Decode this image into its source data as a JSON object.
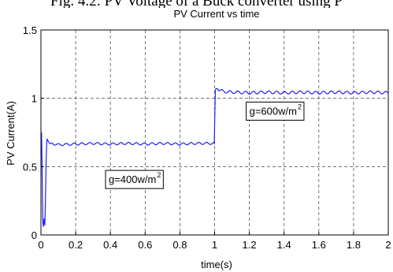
{
  "caption": "Fig. 4.2: PV Voltage of a Buck converter using P",
  "chart_data": {
    "type": "line",
    "title": "PV Current vs time",
    "xlabel": "time(s)",
    "ylabel": "PV Current(A)",
    "xlim": [
      0,
      2
    ],
    "ylim": [
      0,
      1.5
    ],
    "grid": true,
    "x_ticks": [
      "0",
      "0.2",
      "0.4",
      "0.6",
      "0.8",
      "1",
      "1.2",
      "1.4",
      "1.6",
      "1.8",
      "2"
    ],
    "y_ticks": [
      "0",
      "0.5",
      "1",
      "1.5"
    ],
    "series": [
      {
        "color": "#1f1fff",
        "x": [
          0,
          0.003,
          0.006,
          0.008,
          0.011,
          0.014,
          0.018,
          0.022,
          0.026,
          0.03,
          0.033,
          0.036,
          0.04,
          0.045,
          0.05,
          0.06,
          0.1,
          0.2,
          0.3,
          0.4,
          0.5,
          0.6,
          0.7,
          0.8,
          0.9,
          0.998,
          1.0,
          1.004,
          1.008,
          1.015,
          1.03,
          1.05,
          1.1,
          1.2,
          1.3,
          1.4,
          1.5,
          1.6,
          1.7,
          1.8,
          1.9,
          2.0
        ],
        "y": [
          0.6,
          0.75,
          0.55,
          0.3,
          0.1,
          0.06,
          0.12,
          0.07,
          0.25,
          0.55,
          0.68,
          0.7,
          0.69,
          0.68,
          0.67,
          0.67,
          0.66,
          0.665,
          0.67,
          0.665,
          0.67,
          0.665,
          0.67,
          0.665,
          0.67,
          0.67,
          0.8,
          1.06,
          1.07,
          1.07,
          1.06,
          1.05,
          1.045,
          1.04,
          1.045,
          1.04,
          1.045,
          1.04,
          1.045,
          1.04,
          1.045,
          1.04
        ]
      }
    ],
    "annotations": [
      {
        "text": "g=600w/m",
        "sup": "2",
        "x": 1.2,
        "y": 0.88
      },
      {
        "text": "g=400w/m",
        "sup": "2",
        "x": 0.39,
        "y": 0.38
      }
    ]
  }
}
